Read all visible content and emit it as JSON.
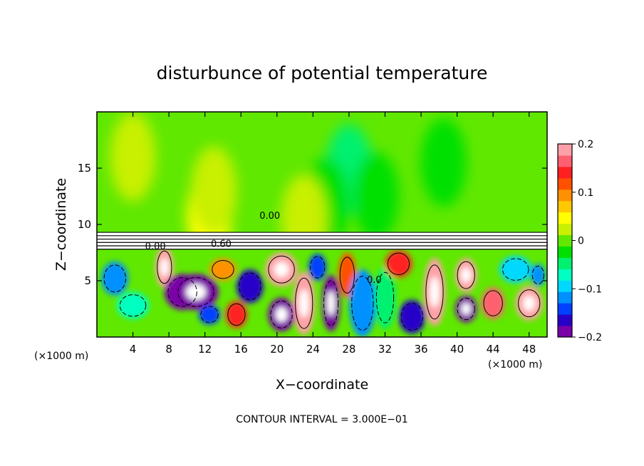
{
  "chart_data": {
    "type": "heatmap",
    "title": "disturbunce of potential temperature",
    "xlabel": "X−coordinate",
    "ylabel": "Z−coordinate",
    "x_unit": "(×1000 m)",
    "x_unit_right": "(×1000 m)",
    "xlim": [
      0,
      50
    ],
    "ylim": [
      0,
      20
    ],
    "x_ticks": [
      4,
      8,
      12,
      16,
      20,
      24,
      28,
      32,
      36,
      40,
      44,
      48
    ],
    "x_tick_labels": [
      "4",
      "8",
      "12",
      "16",
      "20",
      "24",
      "28",
      "32",
      "36",
      "40",
      "44",
      "48"
    ],
    "y_ticks": [
      5,
      10,
      15
    ],
    "y_tick_labels": [
      "5",
      "10",
      "15"
    ],
    "colorbar": {
      "range": [
        -0.2,
        0.2
      ],
      "ticks": [
        0.2,
        0.1,
        0,
        -0.1,
        -0.2
      ],
      "tick_labels": [
        "0.2",
        "0.1",
        "0",
        "−0.1",
        "−0.2"
      ],
      "colors": [
        "#7a00a8",
        "#2800c8",
        "#0040ff",
        "#0090ff",
        "#00d8ff",
        "#00ffc0",
        "#00f070",
        "#00e000",
        "#60e800",
        "#c8f000",
        "#ffff00",
        "#ffc800",
        "#ff9000",
        "#ff5000",
        "#ff2020",
        "#ff6070",
        "#ffa0a8"
      ]
    },
    "contour_interval_text": "CONTOUR INTERVAL = 3.000E−01",
    "contour_labels": [
      {
        "text": "0.00",
        "x": 6.5,
        "y": 7.8
      },
      {
        "text": "0.60",
        "x": 13.8,
        "y": 8.0
      },
      {
        "text": "0.00",
        "x": 19.2,
        "y": 10.5
      },
      {
        "text": "0.0",
        "x": 30.8,
        "y": 4.8
      }
    ],
    "grid": false,
    "upper_layer_value": 0.01,
    "inversion_band_z": [
      7.8,
      9.3
    ],
    "upper_anomalies": [
      {
        "x": 28.0,
        "z": 15.0,
        "value": -0.04
      },
      {
        "x": 25.5,
        "z": 12.0,
        "value": -0.03
      },
      {
        "x": 31.0,
        "z": 12.5,
        "value": -0.03
      },
      {
        "x": 38.5,
        "z": 15.5,
        "value": -0.035
      },
      {
        "x": 12.5,
        "z": 10.8,
        "value": 0.05
      },
      {
        "x": 13.0,
        "z": 13.0,
        "value": 0.035
      },
      {
        "x": 23.0,
        "z": 10.5,
        "value": 0.02
      },
      {
        "x": 45.5,
        "z": 17.0,
        "value": 0.005
      },
      {
        "x": 4.0,
        "z": 16.0,
        "value": 0.015
      }
    ],
    "lower_field": [
      {
        "x": 2.0,
        "z": 5.2,
        "value": -0.12,
        "rx": 1.5,
        "rz": 1.5
      },
      {
        "x": 4.0,
        "z": 2.8,
        "value": -0.08,
        "rx": 1.8,
        "rz": 1.2
      },
      {
        "x": 7.5,
        "z": 6.2,
        "value": 0.2,
        "rx": 1.0,
        "rz": 1.8
      },
      {
        "x": 9.5,
        "z": 4.0,
        "value": -0.2,
        "rx": 2.0,
        "rz": 1.6
      },
      {
        "x": 11.0,
        "z": 4.0,
        "value": -0.2,
        "rx": 2.5,
        "rz": 1.6
      },
      {
        "x": 12.5,
        "z": 2.0,
        "value": -0.15,
        "rx": 1.2,
        "rz": 0.9
      },
      {
        "x": 14.0,
        "z": 6.0,
        "value": 0.1,
        "rx": 1.5,
        "rz": 1.0
      },
      {
        "x": 15.5,
        "z": 2.0,
        "value": 0.15,
        "rx": 1.2,
        "rz": 1.2
      },
      {
        "x": 17.0,
        "z": 4.5,
        "value": -0.16,
        "rx": 1.5,
        "rz": 1.5
      },
      {
        "x": 20.5,
        "z": 6.0,
        "value": 0.2,
        "rx": 1.8,
        "rz": 1.5
      },
      {
        "x": 20.5,
        "z": 2.0,
        "value": -0.2,
        "rx": 1.5,
        "rz": 1.5
      },
      {
        "x": 23.0,
        "z": 3.0,
        "value": 0.18,
        "rx": 1.2,
        "rz": 2.8
      },
      {
        "x": 24.5,
        "z": 6.2,
        "value": -0.14,
        "rx": 1.0,
        "rz": 1.2
      },
      {
        "x": 26.0,
        "z": 3.0,
        "value": -0.18,
        "rx": 1.0,
        "rz": 2.5
      },
      {
        "x": 27.8,
        "z": 5.5,
        "value": 0.12,
        "rx": 1.0,
        "rz": 2.0
      },
      {
        "x": 29.5,
        "z": 3.0,
        "value": -0.12,
        "rx": 1.5,
        "rz": 3.0
      },
      {
        "x": 32.0,
        "z": 3.5,
        "value": -0.05,
        "rx": 1.2,
        "rz": 2.8
      },
      {
        "x": 33.5,
        "z": 6.5,
        "value": 0.15,
        "rx": 1.5,
        "rz": 1.2
      },
      {
        "x": 37.5,
        "z": 4.0,
        "value": 0.2,
        "rx": 1.2,
        "rz": 3.0
      },
      {
        "x": 35.0,
        "z": 1.8,
        "value": -0.16,
        "rx": 1.5,
        "rz": 1.5
      },
      {
        "x": 41.0,
        "z": 5.5,
        "value": 0.18,
        "rx": 1.2,
        "rz": 1.5
      },
      {
        "x": 41.0,
        "z": 2.5,
        "value": -0.2,
        "rx": 1.2,
        "rz": 1.2
      },
      {
        "x": 44.0,
        "z": 3.0,
        "value": 0.16,
        "rx": 1.3,
        "rz": 1.4
      },
      {
        "x": 46.5,
        "z": 6.0,
        "value": -0.1,
        "rx": 1.8,
        "rz": 1.2
      },
      {
        "x": 48.0,
        "z": 3.0,
        "value": 0.2,
        "rx": 1.5,
        "rz": 1.5
      },
      {
        "x": 49.0,
        "z": 5.5,
        "value": -0.12,
        "rx": 0.8,
        "rz": 1.0
      }
    ]
  }
}
